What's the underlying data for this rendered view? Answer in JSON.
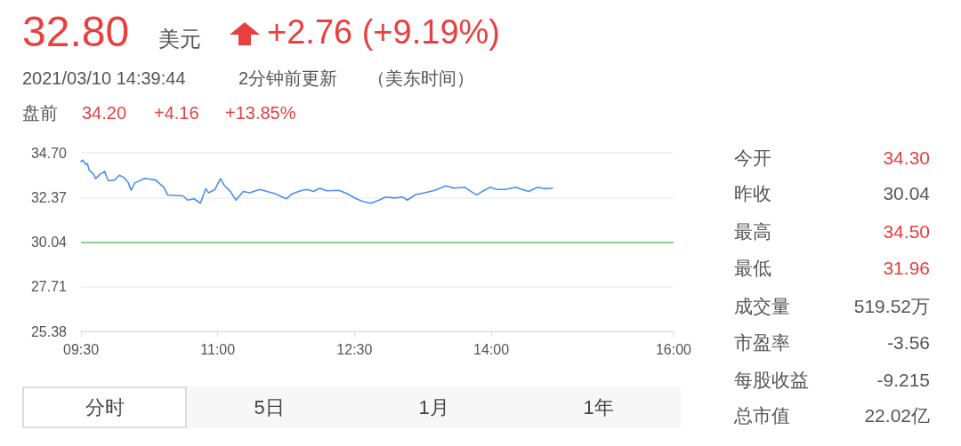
{
  "chart_data": {
    "type": "line",
    "x": [
      9.5,
      9.52,
      9.55,
      9.57,
      9.59,
      9.64,
      9.66,
      9.71,
      9.76,
      9.78,
      9.8,
      9.87,
      9.92,
      9.97,
      10.02,
      10.05,
      10.09,
      10.16,
      10.2,
      10.32,
      10.37,
      10.41,
      10.45,
      10.62,
      10.67,
      10.74,
      10.81,
      10.87,
      10.9,
      10.97,
      11.03,
      11.07,
      11.14,
      11.2,
      11.28,
      11.35,
      11.46,
      11.54,
      11.63,
      11.75,
      11.82,
      11.91,
      11.98,
      12.05,
      12.12,
      12.19,
      12.33,
      12.42,
      12.52,
      12.59,
      12.68,
      12.77,
      12.84,
      12.94,
      13.03,
      13.08,
      13.17,
      13.27,
      13.38,
      13.5,
      13.59,
      13.71,
      13.78,
      13.84,
      13.9,
      13.99,
      14.06,
      14.15,
      14.27,
      14.34,
      14.41,
      14.51,
      14.58,
      14.67
    ],
    "series": [
      {
        "color": "#4a8ff0",
        "values": [
          34.25,
          34.32,
          34.09,
          34.14,
          33.8,
          33.58,
          33.35,
          33.58,
          33.73,
          33.46,
          33.24,
          33.28,
          33.53,
          33.42,
          33.13,
          32.74,
          33.13,
          33.28,
          33.37,
          33.28,
          33.06,
          32.9,
          32.5,
          32.45,
          32.23,
          32.3,
          32.07,
          32.83,
          32.61,
          32.79,
          33.35,
          33.01,
          32.68,
          32.23,
          32.68,
          32.61,
          32.79,
          32.68,
          32.57,
          32.3,
          32.57,
          32.72,
          32.79,
          32.68,
          32.86,
          32.72,
          32.74,
          32.57,
          32.3,
          32.16,
          32.07,
          32.23,
          32.39,
          32.34,
          32.39,
          32.23,
          32.52,
          32.61,
          32.74,
          32.97,
          32.86,
          32.9,
          32.68,
          32.5,
          32.68,
          32.9,
          32.79,
          32.79,
          32.9,
          32.79,
          32.68,
          32.9,
          32.83,
          32.86
        ]
      }
    ],
    "xlim": [
      9.5,
      16
    ],
    "xticks": [
      {
        "value": 9.5,
        "label": "09:30"
      },
      {
        "value": 11,
        "label": "11:00"
      },
      {
        "value": 12.5,
        "label": "12:30"
      },
      {
        "value": 14,
        "label": "14:00"
      },
      {
        "value": 16,
        "label": "16:00"
      }
    ],
    "ylim": [
      25.38,
      34.7
    ],
    "yticks": [
      {
        "value": 25.38,
        "label": "25.38"
      },
      {
        "value": 27.71,
        "label": "27.71"
      },
      {
        "value": 30.04,
        "label": "30.04"
      },
      {
        "value": 32.37,
        "label": "32.37"
      },
      {
        "value": 34.7,
        "label": "34.70"
      }
    ],
    "ref_lines": [
      {
        "axis": "y",
        "value": 30.04,
        "color": "#6cc26c"
      }
    ],
    "grid": "y",
    "marker": "none",
    "line_style": "solid",
    "annotations": [
      "32.80",
      "美元",
      "+2.76 (+9.19%)",
      "2021/03/10 14:39:44",
      "2分钟前更新",
      "（美东时间）",
      "盘前",
      "34.20",
      "+4.16",
      "+13.85%",
      "今开",
      "34.30",
      "昨收",
      "30.04",
      "最高",
      "34.50",
      "最低",
      "31.96",
      "成交量",
      "519.52万",
      "市盈率",
      "-3.56",
      "每股收益",
      "-9.215",
      "总市值",
      "22.02亿",
      "分时",
      "5日",
      "1月",
      "1年"
    ]
  }
}
